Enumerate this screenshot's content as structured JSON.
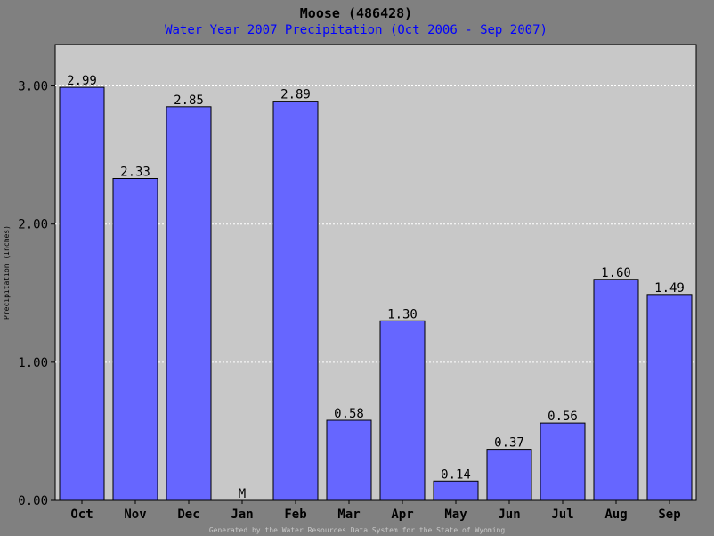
{
  "chart_data": {
    "type": "bar",
    "title": "Moose (486428)",
    "subtitle": "Water Year 2007 Precipitation (Oct 2006 - Sep 2007)",
    "ylabel": "Precipitation (Inches)",
    "xlabel": "",
    "ylim": [
      0,
      3.3
    ],
    "yticks": [
      "0.00",
      "1.00",
      "2.00",
      "3.00"
    ],
    "ytick_values": [
      0,
      1,
      2,
      3
    ],
    "grid": true,
    "categories": [
      "Oct",
      "Nov",
      "Dec",
      "Jan",
      "Feb",
      "Mar",
      "Apr",
      "May",
      "Jun",
      "Jul",
      "Aug",
      "Sep"
    ],
    "values": [
      2.99,
      2.33,
      2.85,
      null,
      2.89,
      0.58,
      1.3,
      0.14,
      0.37,
      0.56,
      1.6,
      1.49
    ],
    "labels": [
      "2.99",
      "2.33",
      "2.85",
      "M",
      "2.89",
      "0.58",
      "1.30",
      "0.14",
      "0.37",
      "0.56",
      "1.60",
      "1.49"
    ],
    "missing_marker": "M",
    "footer": "Generated by the Water Resources Data System for the State of Wyoming",
    "colors": {
      "bar": "#6666ff",
      "missing": "#ff0000",
      "plot_bg": "#c8c8c8",
      "frame_bg": "#808080",
      "subtitle": "#0000ff"
    }
  }
}
